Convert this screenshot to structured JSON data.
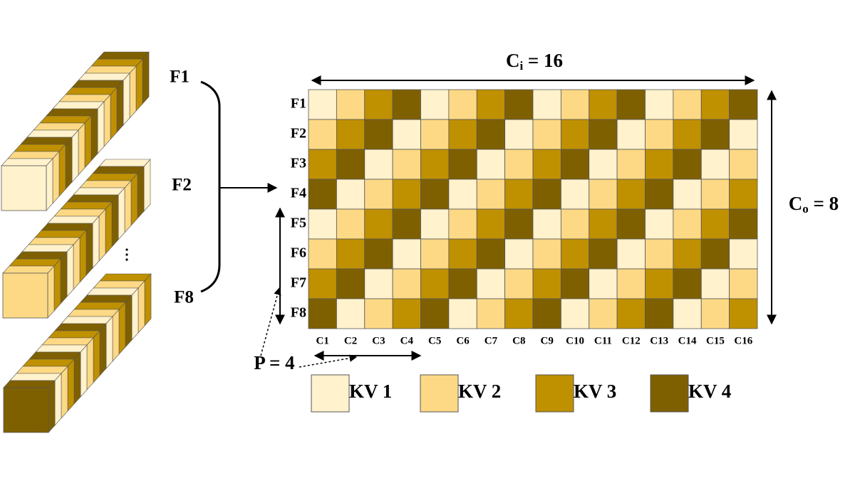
{
  "left_labels": [
    "F1",
    "F2",
    "F8"
  ],
  "capacity_in": {
    "base": "C",
    "sub": "i",
    "rest": " = 16"
  },
  "capacity_out": {
    "base": "C",
    "sub": "o",
    "rest": " = 8"
  },
  "rows": [
    "F1",
    "F2",
    "F3",
    "F4",
    "F5",
    "F6",
    "F7",
    "F8"
  ],
  "columns": [
    "C1",
    "C2",
    "C3",
    "C4",
    "C5",
    "C6",
    "C7",
    "C8",
    "C9",
    "C10",
    "C11",
    "C12",
    "C13",
    "C14",
    "C15",
    "C16"
  ],
  "partition": "P = 4",
  "legend": [
    {
      "name": "KV 1",
      "color": "#fff2cc"
    },
    {
      "name": "KV 2",
      "color": "#fdd985"
    },
    {
      "name": "KV 3",
      "color": "#bf9000"
    },
    {
      "name": "KV 4",
      "color": "#7f6000"
    }
  ],
  "grid": [
    [
      1,
      2,
      3,
      4,
      1,
      2,
      3,
      4,
      1,
      2,
      3,
      4,
      1,
      2,
      3,
      4
    ],
    [
      2,
      3,
      4,
      1,
      2,
      3,
      4,
      1,
      2,
      3,
      4,
      1,
      2,
      3,
      4,
      1
    ],
    [
      3,
      4,
      1,
      2,
      3,
      4,
      1,
      2,
      3,
      4,
      1,
      2,
      3,
      4,
      1,
      2
    ],
    [
      4,
      1,
      2,
      3,
      4,
      1,
      2,
      3,
      4,
      1,
      2,
      3,
      4,
      1,
      2,
      3
    ],
    [
      1,
      2,
      3,
      4,
      1,
      2,
      3,
      4,
      1,
      2,
      3,
      4,
      1,
      2,
      3,
      4
    ],
    [
      2,
      3,
      4,
      1,
      2,
      3,
      4,
      1,
      2,
      3,
      4,
      1,
      2,
      3,
      4,
      1
    ],
    [
      3,
      4,
      1,
      2,
      3,
      4,
      1,
      2,
      3,
      4,
      1,
      2,
      3,
      4,
      1,
      2
    ],
    [
      4,
      1,
      2,
      3,
      4,
      1,
      2,
      3,
      4,
      1,
      2,
      3,
      4,
      1,
      2,
      3
    ]
  ]
}
